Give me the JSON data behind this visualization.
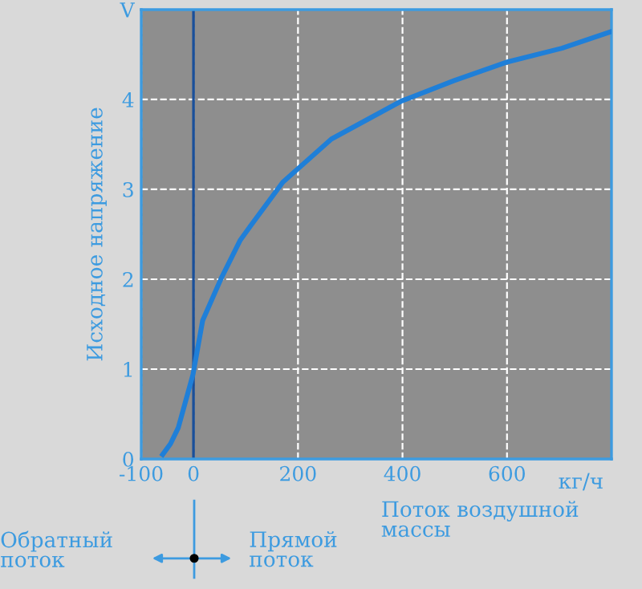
{
  "chart_data": {
    "type": "line",
    "ylabel": "Исходное напряжение",
    "xlabel": "Поток воздушной массы",
    "annotations": [
      "кг/ч",
      "Обратный поток",
      "Прямой поток"
    ],
    "series": [
      {
        "color": "#1f7fd8",
        "x": [
          -59,
          -44,
          -29,
          -1,
          17.5,
          53,
          89,
          110,
          171,
          264,
          397,
          499,
          602,
          705,
          797
        ],
        "values": [
          0.05,
          0.17,
          0.35,
          0.94,
          1.54,
          2.01,
          2.43,
          2.6,
          3.08,
          3.56,
          3.98,
          4.21,
          4.42,
          4.57,
          4.75
        ]
      }
    ],
    "xlim": [
      -100,
      800
    ],
    "ylim": [
      0,
      5
    ],
    "xticks": [
      -100,
      0,
      200,
      400,
      600
    ],
    "yticks": [
      0,
      1,
      2,
      3,
      4,
      {
        "value": 5,
        "label": "V"
      }
    ],
    "ref_lines": [
      {
        "axis": "x",
        "value": 0,
        "color": "#1a4f9a"
      }
    ],
    "grid": true,
    "marker": "none",
    "line_style": "solid",
    "legend": false
  }
}
